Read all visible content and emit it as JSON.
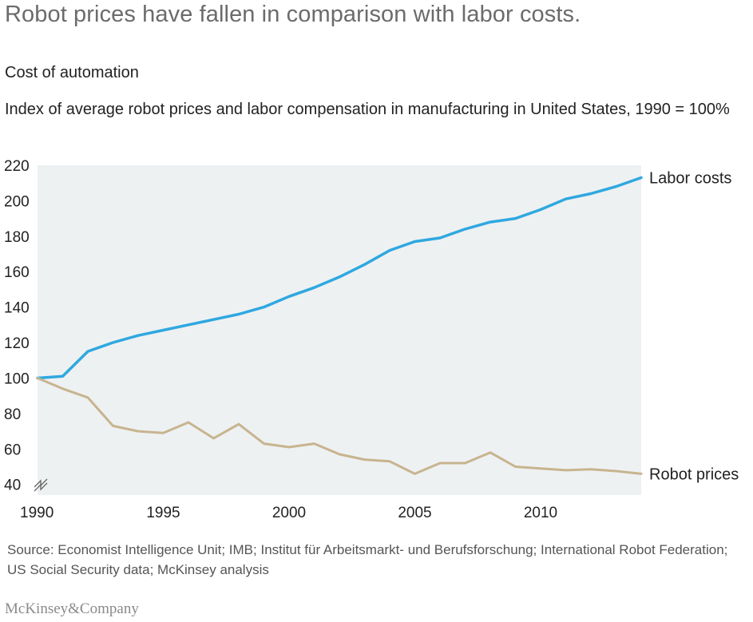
{
  "title": "Robot prices have fallen in comparison with labor costs.",
  "subtitle": "Cost of automation",
  "description": "Index of average robot prices and labor compensation in manufacturing in United States, 1990 = 100%",
  "source": "Source: Economist Intelligence Unit; IMB; Institut für Arbeitsmarkt- und Berufsforschung; International Robot Federation; US Social Security data; McKinsey analysis",
  "brand": "McKinsey&Company",
  "chart_data": {
    "type": "line",
    "title": "Robot prices have fallen in comparison with labor costs.",
    "xlabel": "",
    "ylabel": "",
    "x": [
      1990,
      1991,
      1992,
      1993,
      1994,
      1995,
      1996,
      1997,
      1998,
      1999,
      2000,
      2001,
      2002,
      2003,
      2004,
      2005,
      2006,
      2007,
      2008,
      2009,
      2010,
      2011,
      2012,
      2013,
      2014
    ],
    "xlim": [
      1990,
      2014
    ],
    "ylim": [
      34,
      220
    ],
    "x_ticks": [
      "1990",
      "1995",
      "2000",
      "2005",
      "2010"
    ],
    "x_tick_values": [
      1990,
      1995,
      2000,
      2005,
      2010
    ],
    "y_ticks": [
      "40",
      "60",
      "80",
      "100",
      "120",
      "140",
      "160",
      "180",
      "200",
      "220"
    ],
    "y_tick_values": [
      40,
      60,
      80,
      100,
      120,
      140,
      160,
      180,
      200,
      220
    ],
    "grid": false,
    "axis_break": true,
    "plot_background": "#eef1f2",
    "series": [
      {
        "name": "Labor costs",
        "color": "#2fa8e0",
        "values": [
          100,
          101,
          115,
          120,
          124,
          127,
          130,
          133,
          136,
          140,
          146,
          151,
          157,
          164,
          172,
          177,
          179,
          184,
          188,
          190,
          195,
          201,
          204,
          208,
          213
        ]
      },
      {
        "name": "Robot prices",
        "color": "#c7b48f",
        "values": [
          100,
          94,
          89,
          73,
          70,
          69,
          75,
          66,
          74,
          63,
          61,
          63,
          57,
          54,
          53,
          46,
          52,
          52,
          58,
          50,
          49,
          48,
          48.5,
          47.5,
          46
        ]
      }
    ]
  }
}
